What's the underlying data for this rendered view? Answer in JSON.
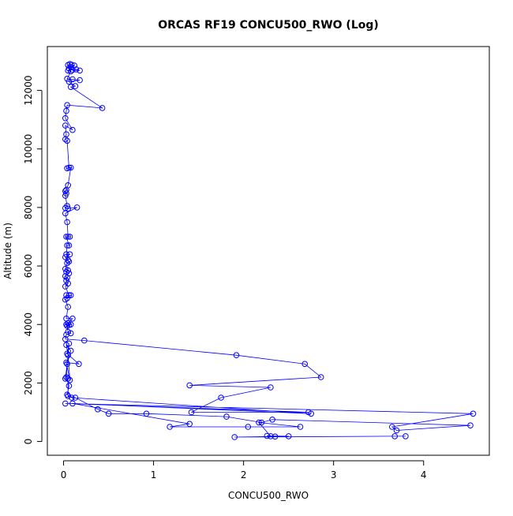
{
  "chart_data": {
    "type": "scatter",
    "title": "ORCAS RF19 CONCU500_RWO (Log)",
    "xlabel": "CONCU500_RWO",
    "ylabel": "Altitude (m)",
    "xlim": [
      -0.18,
      4.73
    ],
    "ylim": [
      -470,
      13500
    ],
    "x_ticks": [
      0,
      1,
      2,
      3,
      4
    ],
    "x_tick_labels": [
      "0",
      "1",
      "2",
      "3",
      "4"
    ],
    "y_ticks": [
      0,
      2000,
      4000,
      6000,
      8000,
      10000,
      12000
    ],
    "y_tick_labels": [
      "0",
      "2000",
      "4000",
      "6000",
      "8000",
      "10000",
      "12000"
    ],
    "grid": false,
    "series": [
      {
        "color": "#0000ff",
        "marker": "open-circle",
        "line": true,
        "points": [
          [
            0.07,
            12900
          ],
          [
            0.05,
            12870
          ],
          [
            0.09,
            12880
          ],
          [
            0.12,
            12850
          ],
          [
            0.08,
            12800
          ],
          [
            0.06,
            12750
          ],
          [
            0.1,
            12700
          ],
          [
            0.18,
            12680
          ],
          [
            0.14,
            12720
          ],
          [
            0.05,
            12680
          ],
          [
            0.08,
            12650
          ],
          [
            0.04,
            12400
          ],
          [
            0.1,
            12380
          ],
          [
            0.18,
            12350
          ],
          [
            0.06,
            12300
          ],
          [
            0.13,
            12150
          ],
          [
            0.08,
            12120
          ],
          [
            0.43,
            11400
          ],
          [
            0.04,
            11500
          ],
          [
            0.03,
            11300
          ],
          [
            0.02,
            11050
          ],
          [
            0.1,
            10650
          ],
          [
            0.02,
            10800
          ],
          [
            0.03,
            10500
          ],
          [
            0.02,
            10330
          ],
          [
            0.04,
            10280
          ],
          [
            0.06,
            9360
          ],
          [
            0.04,
            9340
          ],
          [
            0.08,
            9360
          ],
          [
            0.05,
            8760
          ],
          [
            0.03,
            8600
          ],
          [
            0.02,
            8560
          ],
          [
            0.03,
            8480
          ],
          [
            0.02,
            8400
          ],
          [
            0.04,
            8050
          ],
          [
            0.02,
            7980
          ],
          [
            0.05,
            7960
          ],
          [
            0.15,
            8000
          ],
          [
            0.02,
            7800
          ],
          [
            0.04,
            7500
          ],
          [
            0.05,
            7000
          ],
          [
            0.07,
            7000
          ],
          [
            0.03,
            7000
          ],
          [
            0.06,
            6700
          ],
          [
            0.04,
            6700
          ],
          [
            0.03,
            6400
          ],
          [
            0.07,
            6400
          ],
          [
            0.02,
            6300
          ],
          [
            0.05,
            6200
          ],
          [
            0.06,
            6150
          ],
          [
            0.04,
            6100
          ],
          [
            0.02,
            5900
          ],
          [
            0.05,
            5850
          ],
          [
            0.03,
            5800
          ],
          [
            0.06,
            5750
          ],
          [
            0.02,
            5650
          ],
          [
            0.04,
            5600
          ],
          [
            0.03,
            5500
          ],
          [
            0.05,
            5400
          ],
          [
            0.02,
            5300
          ],
          [
            0.06,
            5000
          ],
          [
            0.03,
            5000
          ],
          [
            0.08,
            5000
          ],
          [
            0.04,
            4900
          ],
          [
            0.02,
            4850
          ],
          [
            0.05,
            4600
          ],
          [
            0.03,
            4200
          ],
          [
            0.1,
            4200
          ],
          [
            0.05,
            4050
          ],
          [
            0.08,
            4000
          ],
          [
            0.03,
            4000
          ],
          [
            0.06,
            3980
          ],
          [
            0.04,
            3950
          ],
          [
            0.05,
            3750
          ],
          [
            0.08,
            3700
          ],
          [
            0.03,
            3650
          ],
          [
            0.02,
            3500
          ],
          [
            0.23,
            3450
          ],
          [
            1.92,
            2950
          ],
          [
            2.68,
            2650
          ],
          [
            2.86,
            2200
          ],
          [
            1.4,
            1920
          ],
          [
            2.3,
            1850
          ],
          [
            1.75,
            1500
          ],
          [
            1.42,
            1000
          ],
          [
            2.72,
            1000
          ],
          [
            0.02,
            1300
          ],
          [
            4.55,
            950
          ],
          [
            3.65,
            500
          ],
          [
            3.7,
            380
          ],
          [
            4.52,
            550
          ],
          [
            2.32,
            750
          ],
          [
            2.2,
            650
          ],
          [
            1.81,
            850
          ],
          [
            0.92,
            950
          ],
          [
            0.5,
            950
          ],
          [
            0.38,
            1100
          ],
          [
            0.13,
            1500
          ],
          [
            0.05,
            1550
          ],
          [
            0.05,
            2150
          ],
          [
            0.02,
            2150
          ],
          [
            0.04,
            2650
          ],
          [
            0.08,
            3100
          ],
          [
            0.03,
            3300
          ],
          [
            0.05,
            2950
          ],
          [
            0.07,
            2100
          ],
          [
            0.03,
            2700
          ],
          [
            0.17,
            2650
          ],
          [
            0.04,
            3000
          ],
          [
            0.06,
            3350
          ],
          [
            0.03,
            2200
          ],
          [
            0.06,
            1900
          ],
          [
            0.04,
            1600
          ],
          [
            0.09,
            1500
          ],
          [
            2.75,
            950
          ],
          [
            0.1,
            1300
          ],
          [
            1.4,
            600
          ],
          [
            1.18,
            500
          ],
          [
            2.05,
            500
          ],
          [
            2.63,
            500
          ],
          [
            2.17,
            650
          ],
          [
            2.3,
            180
          ],
          [
            2.35,
            170
          ],
          [
            2.26,
            190
          ],
          [
            2.5,
            180
          ],
          [
            1.9,
            150
          ],
          [
            3.68,
            180
          ],
          [
            3.8,
            180
          ]
        ]
      }
    ]
  }
}
